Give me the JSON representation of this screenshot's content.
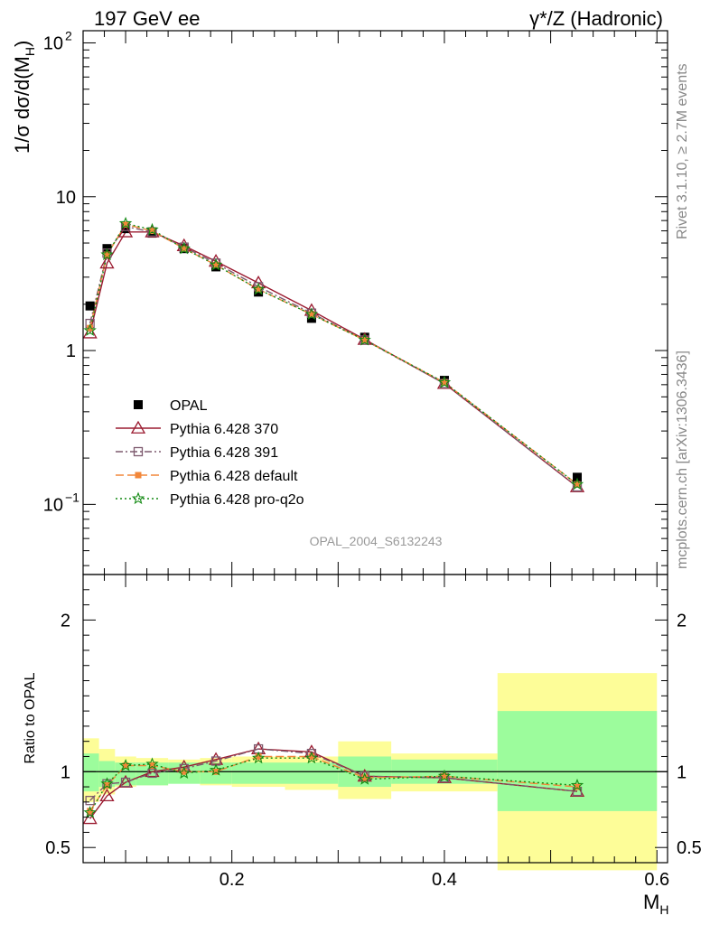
{
  "chart_data": {
    "type": "line",
    "title_left": "197 GeV ee",
    "title_right": "γ*/Z (Hadronic)",
    "analysis_label": "OPAL_2004_S6132243",
    "side_label_top": "Rivet 3.1.10, ≥ 2.7M events",
    "side_label_bottom": "mcplots.cern.ch [arXiv:1306.3436]",
    "xlabel": "M",
    "xlabel_sub": "H",
    "ylabel_main": "1/σ dσ/d(M",
    "ylabel_main_sub": "H",
    "ylabel_ratio": "Ratio to OPAL",
    "xlim": [
      0.06,
      0.61
    ],
    "ylim_main_log": [
      0.035,
      120
    ],
    "ylim_ratio": [
      0.4,
      2.3
    ],
    "x_ticks": [
      "0.2",
      "0.4",
      "0.6"
    ],
    "y_ticks_main": [
      "10",
      "1",
      "10"
    ],
    "y_ticks_main_exp": [
      "2",
      "",
      "−1"
    ],
    "y_ticks_ratio": [
      "2",
      "1",
      "0.5"
    ],
    "x": [
      0.0665,
      0.0825,
      0.1,
      0.125,
      0.155,
      0.185,
      0.225,
      0.275,
      0.325,
      0.4,
      0.525
    ],
    "bins": [
      [
        0.06,
        0.075
      ],
      [
        0.075,
        0.09
      ],
      [
        0.09,
        0.11
      ],
      [
        0.11,
        0.14
      ],
      [
        0.14,
        0.17
      ],
      [
        0.17,
        0.2
      ],
      [
        0.2,
        0.25
      ],
      [
        0.25,
        0.3
      ],
      [
        0.3,
        0.35
      ],
      [
        0.35,
        0.45
      ],
      [
        0.45,
        0.6
      ]
    ],
    "data": {
      "name": "OPAL",
      "values": [
        1.95,
        4.6,
        6.2,
        5.8,
        4.6,
        3.5,
        2.4,
        1.62,
        1.22,
        0.64,
        0.15
      ],
      "band_inner": [
        [
          0.87,
          1.12
        ],
        [
          0.9,
          1.07
        ],
        [
          0.91,
          1.06
        ],
        [
          0.91,
          1.06
        ],
        [
          0.92,
          1.06
        ],
        [
          0.92,
          1.06
        ],
        [
          0.92,
          1.06
        ],
        [
          0.92,
          1.06
        ],
        [
          0.9,
          1.1
        ],
        [
          0.92,
          1.08
        ],
        [
          0.74,
          1.4
        ]
      ],
      "band_outer": [
        [
          0.8,
          1.22
        ],
        [
          0.85,
          1.15
        ],
        [
          0.9,
          1.1
        ],
        [
          0.91,
          1.09
        ],
        [
          0.93,
          1.08
        ],
        [
          0.91,
          1.09
        ],
        [
          0.9,
          1.1
        ],
        [
          0.88,
          1.1
        ],
        [
          0.82,
          1.2
        ],
        [
          0.87,
          1.12
        ],
        [
          0.35,
          1.65
        ]
      ]
    },
    "series": [
      {
        "name": "Pythia 6.428 370",
        "color": "#9b1b30",
        "marker": "triangle",
        "dash": "",
        "values": [
          1.3,
          3.7,
          5.9,
          5.9,
          4.8,
          3.8,
          2.75,
          1.82,
          1.18,
          0.61,
          0.13
        ],
        "ratio": [
          0.69,
          0.84,
          0.93,
          1.0,
          1.03,
          1.08,
          1.15,
          1.13,
          0.97,
          0.96,
          0.87
        ]
      },
      {
        "name": "Pythia 6.428 391",
        "color": "#7d5a6e",
        "marker": "square-open",
        "dash": "8,3,2,3",
        "values": [
          1.5,
          4.3,
          6.4,
          5.9,
          4.7,
          3.7,
          2.6,
          1.75,
          1.17,
          0.61,
          0.13
        ],
        "ratio": [
          0.81,
          0.92,
          0.93,
          0.99,
          1.02,
          1.07,
          1.15,
          1.12,
          0.97,
          0.96,
          0.87
        ]
      },
      {
        "name": "Pythia 6.428 default",
        "color": "#f2873a",
        "marker": "square-filled",
        "dash": "9,4",
        "values": [
          1.4,
          4.2,
          6.6,
          6.0,
          4.6,
          3.6,
          2.5,
          1.72,
          1.17,
          0.62,
          0.135
        ],
        "ratio": [
          0.74,
          0.91,
          1.04,
          1.04,
          1.0,
          1.0,
          1.1,
          1.1,
          0.96,
          0.97,
          0.9
        ]
      },
      {
        "name": "Pythia 6.428 pro-q2o",
        "color": "#138a13",
        "marker": "star",
        "dash": "2,3",
        "values": [
          1.35,
          4.2,
          6.7,
          6.1,
          4.6,
          3.6,
          2.5,
          1.72,
          1.17,
          0.62,
          0.135
        ],
        "ratio": [
          0.73,
          0.92,
          1.04,
          1.05,
          0.99,
          1.01,
          1.09,
          1.09,
          0.95,
          0.97,
          0.91
        ]
      }
    ],
    "legend_position": "lower-left",
    "band_colors": {
      "inner": "#9cfc9c",
      "outer": "#fdfd98"
    }
  }
}
